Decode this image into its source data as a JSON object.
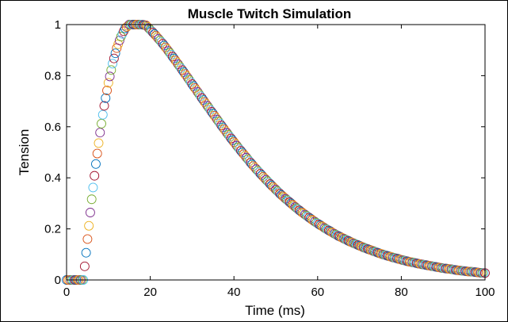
{
  "chart_data": {
    "type": "scatter",
    "title": "Muscle Twitch Simulation",
    "xlabel": "Time (ms)",
    "ylabel": "Tension",
    "xlim": [
      0,
      100
    ],
    "ylim": [
      0,
      1
    ],
    "xticks": [
      0,
      20,
      40,
      60,
      80,
      100
    ],
    "yticks": [
      0,
      0.2,
      0.4,
      0.6,
      0.8,
      1
    ],
    "xtick_labels": [
      "0",
      "20",
      "40",
      "60",
      "80",
      "100"
    ],
    "ytick_labels": [
      "0",
      "0.2",
      "0.4",
      "0.6",
      "0.8",
      "1"
    ],
    "grid": false,
    "marker": "circle",
    "marker_colors": [
      "#0072BD",
      "#D95319",
      "#EDB120",
      "#7E2F8E",
      "#77AC30",
      "#4DBEEE",
      "#A2142F"
    ],
    "x": [
      0,
      1,
      2,
      3,
      4,
      5,
      6,
      7,
      8,
      9,
      10,
      11,
      12,
      13,
      14,
      15,
      16,
      17,
      18,
      19,
      20,
      21,
      22,
      23,
      24,
      25,
      26,
      27,
      28,
      29,
      30,
      31,
      32,
      33,
      34,
      35,
      36,
      37,
      38,
      39,
      40,
      41,
      42,
      43,
      44,
      45,
      46,
      47,
      48,
      49,
      50,
      51,
      52,
      53,
      54,
      55,
      56,
      57,
      58,
      59,
      60,
      61,
      62,
      63,
      64,
      65,
      66,
      67,
      68,
      69,
      70,
      71,
      72,
      73,
      74,
      75,
      76,
      77,
      78,
      79,
      80,
      81,
      82,
      83,
      84,
      85,
      86,
      87,
      88,
      89,
      90,
      91,
      92,
      93,
      94,
      95,
      96,
      97,
      98,
      99,
      100
    ],
    "y": [
      0.0,
      0.0,
      0.0,
      0.0,
      0.0,
      0.16,
      0.316,
      0.454,
      0.577,
      0.682,
      0.772,
      0.847,
      0.908,
      0.953,
      0.985,
      1.0,
      1.0,
      1.0,
      1.0,
      0.997,
      0.98,
      0.963,
      0.944,
      0.925,
      0.904,
      0.882,
      0.86,
      0.837,
      0.814,
      0.791,
      0.767,
      0.744,
      0.72,
      0.697,
      0.674,
      0.651,
      0.628,
      0.605,
      0.583,
      0.561,
      0.54,
      0.519,
      0.499,
      0.479,
      0.459,
      0.44,
      0.422,
      0.404,
      0.387,
      0.37,
      0.354,
      0.338,
      0.323,
      0.309,
      0.295,
      0.281,
      0.268,
      0.256,
      0.244,
      0.232,
      0.221,
      0.211,
      0.2,
      0.191,
      0.181,
      0.172,
      0.164,
      0.156,
      0.148,
      0.141,
      0.134,
      0.127,
      0.121,
      0.115,
      0.109,
      0.103,
      0.098,
      0.093,
      0.088,
      0.084,
      0.079,
      0.075,
      0.071,
      0.068,
      0.064,
      0.061,
      0.058,
      0.055,
      0.052,
      0.049,
      0.046,
      0.044,
      0.042,
      0.039,
      0.037,
      0.035,
      0.033,
      0.032,
      0.03,
      0.028,
      0.027
    ]
  }
}
